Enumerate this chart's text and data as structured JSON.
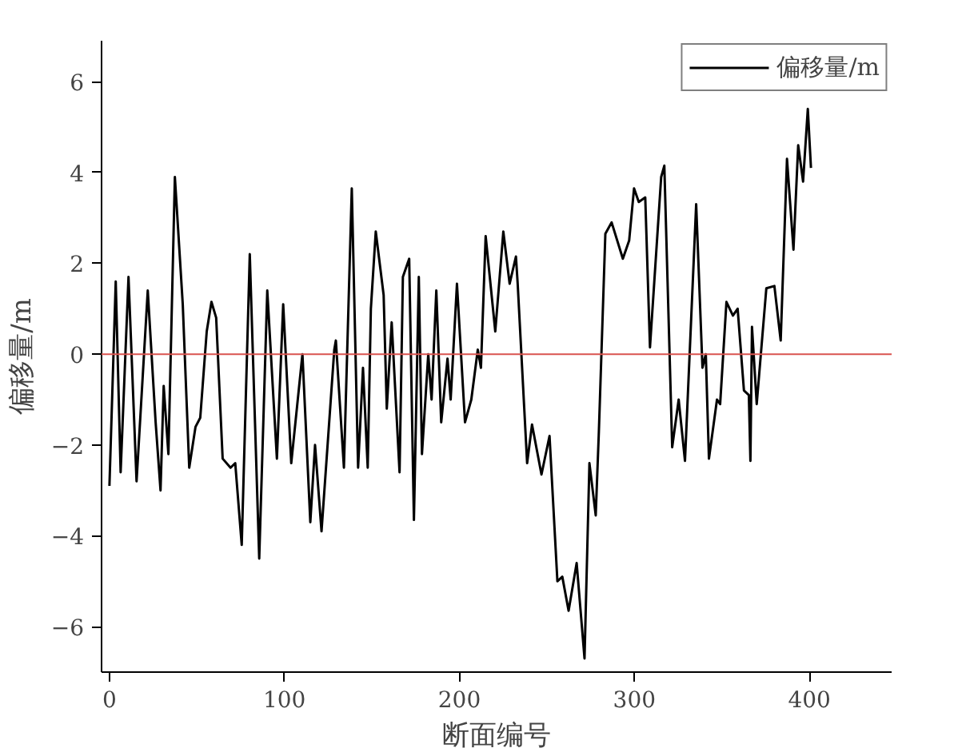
{
  "chart_data": {
    "type": "line",
    "xlabel": "断面编号",
    "ylabel": "偏移量/m",
    "legend": "top right",
    "grid": false,
    "line_style": "solid",
    "xlim": [
      -4.5,
      447
    ],
    "ylim": [
      -7,
      6.9
    ],
    "xticks": [
      0,
      100,
      200,
      300,
      400
    ],
    "yticks": [
      -6,
      -4,
      -2,
      0,
      2,
      4,
      6
    ],
    "ref_lines": [
      {
        "axis": "y",
        "value": 0,
        "color": "#d9534f"
      }
    ],
    "series": [
      {
        "name": "偏移量/m",
        "color": "#000000",
        "x": [
          0,
          3.6,
          6.4,
          10.9,
          15.5,
          21.9,
          26.4,
          29.2,
          31,
          33.7,
          37.4,
          41.9,
          45.6,
          49.2,
          51.9,
          55.6,
          58.3,
          61,
          64.7,
          69.2,
          71.9,
          75.6,
          80.2,
          85.6,
          90.2,
          95.7,
          99.3,
          103.9,
          110.3,
          114.8,
          117.5,
          121.2,
          128.5,
          129.4,
          134,
          138.5,
          142.1,
          144.9,
          147.6,
          149.4,
          152.2,
          156.7,
          158.5,
          161.3,
          165.8,
          167.7,
          171.3,
          174,
          176.8,
          178.6,
          182.2,
          184.1,
          186.8,
          189.6,
          193.2,
          195,
          198.6,
          203.2,
          206.8,
          210.5,
          212.3,
          215,
          220.5,
          225.1,
          228.7,
          232.3,
          233.3,
          238.7,
          241.5,
          246.9,
          251.5,
          256,
          258.8,
          262.4,
          267,
          271.5,
          274.3,
          277.9,
          279.7,
          283.4,
          287,
          293.4,
          297,
          299.8,
          302.5,
          306.2,
          308.9,
          315.3,
          317.1,
          321.6,
          325.3,
          328.9,
          335.3,
          338.9,
          340.8,
          342.6,
          347.2,
          349,
          352.6,
          356.3,
          359,
          362.6,
          365.4,
          366.3,
          367.2,
          369.9,
          375.4,
          380,
          383.6,
          387.2,
          390.9,
          393.6,
          396.4,
          399.1,
          400.9
        ],
        "values": [
          -2.9,
          1.6,
          -2.6,
          1.7,
          -2.8,
          1.4,
          -1.5,
          -3.0,
          -0.7,
          -2.2,
          3.9,
          1.1,
          -2.5,
          -1.6,
          -1.4,
          0.5,
          1.15,
          0.8,
          -2.3,
          -2.5,
          -2.4,
          -4.2,
          2.2,
          -4.5,
          1.4,
          -2.3,
          1.1,
          -2.4,
          0,
          -3.7,
          -2.0,
          -3.9,
          0.1,
          0.3,
          -2.5,
          3.65,
          -2.5,
          -0.3,
          -2.5,
          1.0,
          2.7,
          1.3,
          -1.2,
          0.7,
          -2.6,
          1.7,
          2.1,
          -3.65,
          1.7,
          -2.2,
          0,
          -1.0,
          1.4,
          -1.5,
          -0.1,
          -1.0,
          1.55,
          -1.5,
          -1.0,
          0.1,
          -0.3,
          2.6,
          0.5,
          2.7,
          1.55,
          2.15,
          1.55,
          -2.4,
          -1.55,
          -2.65,
          -1.8,
          -5.0,
          -4.9,
          -5.65,
          -4.6,
          -6.7,
          -2.4,
          -3.55,
          -1.7,
          2.65,
          2.9,
          2.1,
          2.5,
          3.65,
          3.35,
          3.45,
          0.15,
          3.9,
          4.15,
          -2.05,
          -1.0,
          -2.35,
          3.3,
          -0.3,
          0,
          -2.3,
          -1.0,
          -1.1,
          1.15,
          0.85,
          1.0,
          -0.8,
          -0.9,
          -2.35,
          0.6,
          -1.1,
          1.45,
          1.5,
          0.3,
          4.3,
          2.3,
          4.6,
          3.8,
          5.4,
          4.1
        ]
      }
    ]
  }
}
